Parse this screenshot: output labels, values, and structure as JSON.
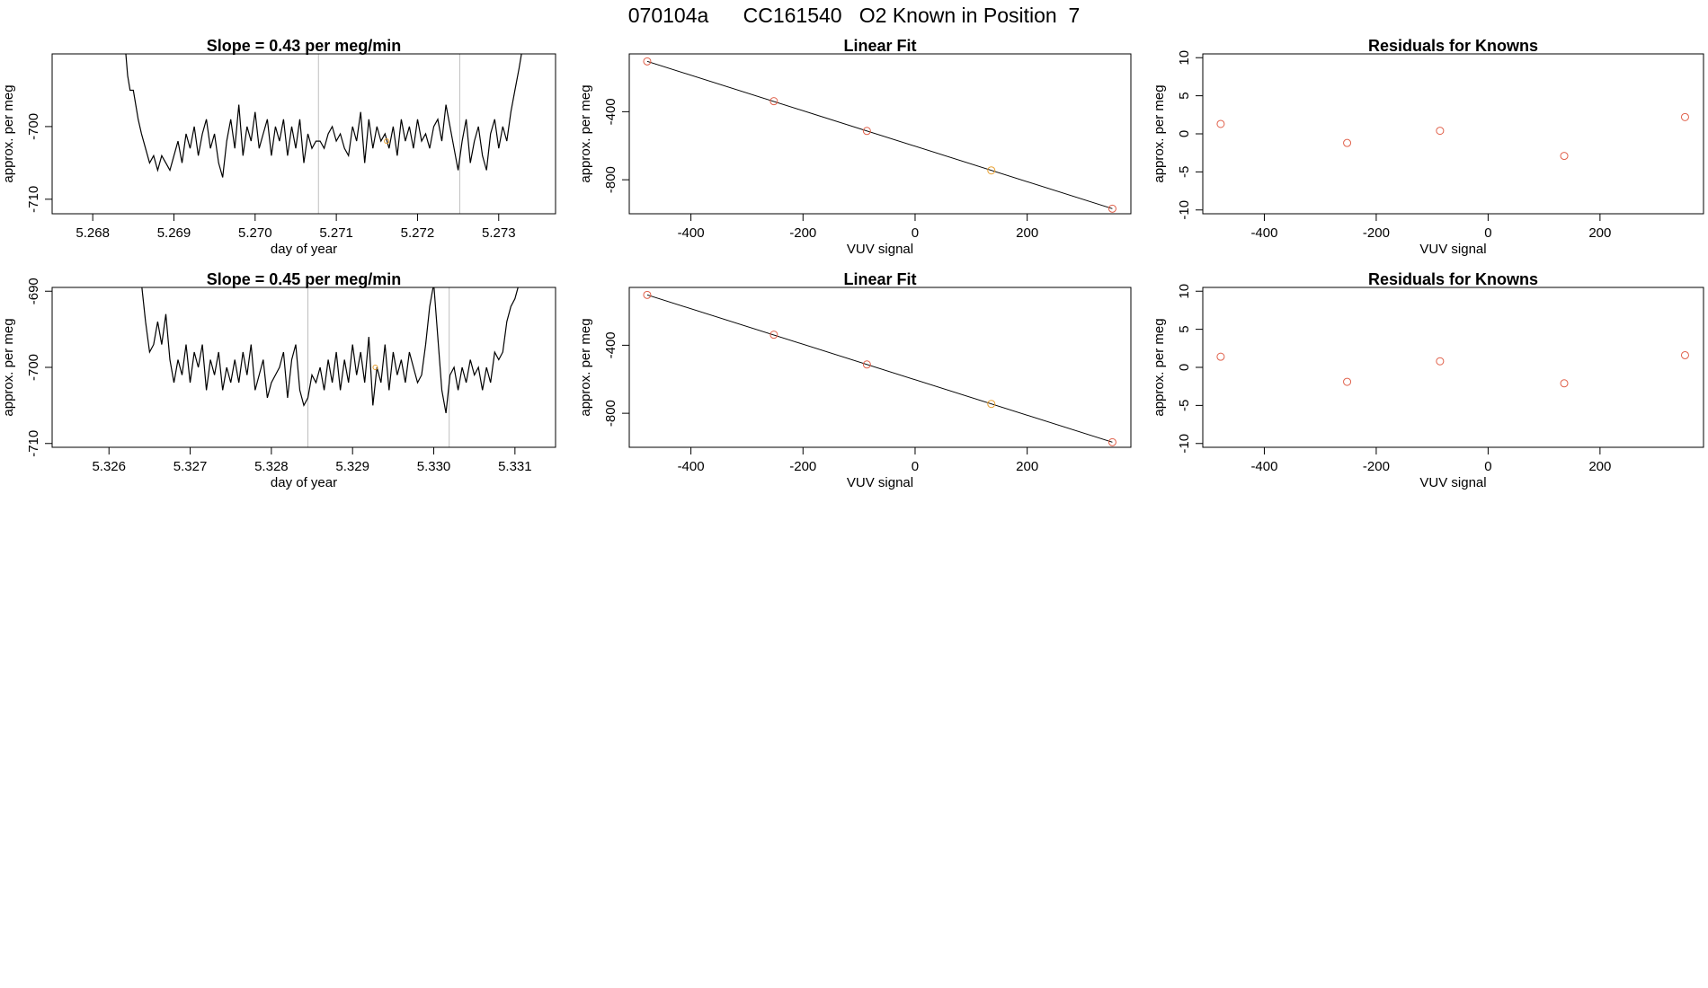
{
  "page_title": "070104a      CC161540   O2 Known in Position  7",
  "colors": {
    "known_point": "#e0604a",
    "highlight_point": "#e8a030",
    "trace": "#000000",
    "marker_line": "#bebebe"
  },
  "chart_data": [
    {
      "type": "line",
      "title": "Slope =  0.43  per meg/min",
      "xlabel": "day of year",
      "ylabel": "approx. per meg",
      "xlim": [
        5.2675,
        5.2737
      ],
      "ylim": [
        -712,
        -690
      ],
      "xticks": [
        "5.268",
        "5.269",
        "5.270",
        "5.271",
        "5.272",
        "5.273"
      ],
      "yticks": [
        "-710",
        "-700"
      ],
      "vlines": [
        5.27078,
        5.27252
      ],
      "highlight": {
        "x": 5.27162,
        "y": -702
      },
      "x": [
        5.2684,
        5.26843,
        5.26846,
        5.2685,
        5.26853,
        5.26856,
        5.2686,
        5.26865,
        5.2687,
        5.26875,
        5.2688,
        5.26885,
        5.2689,
        5.26895,
        5.269,
        5.26905,
        5.2691,
        5.26915,
        5.2692,
        5.26925,
        5.2693,
        5.26935,
        5.2694,
        5.26945,
        5.2695,
        5.26955,
        5.2696,
        5.26965,
        5.2697,
        5.26975,
        5.2698,
        5.26985,
        5.2699,
        5.26995,
        5.27,
        5.27005,
        5.2701,
        5.27015,
        5.2702,
        5.27025,
        5.2703,
        5.27035,
        5.2704,
        5.27045,
        5.2705,
        5.27055,
        5.2706,
        5.27065,
        5.2707,
        5.27075,
        5.2708,
        5.27085,
        5.2709,
        5.27095,
        5.271,
        5.27105,
        5.2711,
        5.27115,
        5.2712,
        5.27125,
        5.2713,
        5.27135,
        5.2714,
        5.27145,
        5.2715,
        5.27155,
        5.2716,
        5.27165,
        5.2717,
        5.27175,
        5.2718,
        5.27185,
        5.2719,
        5.27195,
        5.272,
        5.27205,
        5.2721,
        5.27215,
        5.2722,
        5.27225,
        5.2723,
        5.27235,
        5.2724,
        5.27245,
        5.2725,
        5.27255,
        5.2726,
        5.27265,
        5.2727,
        5.27275,
        5.2728,
        5.27285,
        5.2729,
        5.27295,
        5.273,
        5.27305,
        5.2731,
        5.27315,
        5.2732,
        5.27325,
        5.27328,
        5.2733,
        5.27335
      ],
      "y": [
        -689,
        -693,
        -695,
        -695,
        -697,
        -699,
        -701,
        -703,
        -705,
        -704,
        -706,
        -704,
        -705,
        -706,
        -704,
        -702,
        -705,
        -701,
        -703,
        -700,
        -704,
        -701,
        -699,
        -703,
        -701,
        -705,
        -707,
        -702,
        -699,
        -703,
        -697,
        -704,
        -700,
        -702,
        -698,
        -703,
        -701,
        -699,
        -704,
        -700,
        -702,
        -699,
        -704,
        -700,
        -703,
        -699,
        -705,
        -701,
        -703,
        -702,
        -702,
        -703,
        -701,
        -700,
        -702,
        -701,
        -703,
        -704,
        -700,
        -702,
        -698,
        -705,
        -699,
        -703,
        -700,
        -702,
        -701,
        -703,
        -700,
        -704,
        -699,
        -702,
        -700,
        -703,
        -699,
        -702,
        -701,
        -703,
        -700,
        -699,
        -702,
        -697,
        -700,
        -703,
        -706,
        -702,
        -699,
        -705,
        -702,
        -700,
        -704,
        -706,
        -701,
        -699,
        -703,
        -700,
        -702,
        -698,
        -695,
        -692,
        -690,
        -689,
        -689
      ]
    },
    {
      "type": "scatter",
      "title": "Linear Fit",
      "xlabel": "VUV signal",
      "ylabel": "approx. per meg",
      "xlim": [
        -510,
        385
      ],
      "ylim": [
        -1000,
        -60
      ],
      "xticks": [
        "-400",
        "-200",
        "0",
        "200"
      ],
      "yticks": [
        "-800",
        "-400"
      ],
      "points": [
        {
          "x": -478,
          "y": -104
        },
        {
          "x": -252,
          "y": -338
        },
        {
          "x": -86,
          "y": -513
        },
        {
          "x": 136,
          "y": -745
        },
        {
          "x": 352,
          "y": -970
        }
      ],
      "fit_line": {
        "x": [
          -478,
          352
        ],
        "y": [
          -104,
          -970
        ]
      }
    },
    {
      "type": "scatter",
      "title": "Residuals for Knowns",
      "xlabel": "VUV signal",
      "ylabel": "approx. per meg",
      "xlim": [
        -510,
        385
      ],
      "ylim": [
        -10.5,
        10.5
      ],
      "xticks": [
        "-400",
        "-200",
        "0",
        "200"
      ],
      "yticks": [
        "-10",
        "-5",
        "0",
        "5",
        "10"
      ],
      "points": [
        {
          "x": -478,
          "y": 1.3
        },
        {
          "x": -252,
          "y": -1.2
        },
        {
          "x": -86,
          "y": 0.4
        },
        {
          "x": 136,
          "y": -2.9
        },
        {
          "x": 352,
          "y": 2.2
        }
      ]
    },
    {
      "type": "line",
      "title": "Slope =  0.45  per meg/min",
      "xlabel": "day of year",
      "ylabel": "approx. per meg",
      "xlim": [
        5.3253,
        5.3315
      ],
      "ylim": [
        -710.5,
        -689.5
      ],
      "xticks": [
        "5.326",
        "5.327",
        "5.328",
        "5.329",
        "5.330",
        "5.331"
      ],
      "yticks": [
        "-710",
        "-700",
        "-690"
      ],
      "vlines": [
        5.32845,
        5.33019
      ],
      "highlight": {
        "x": 5.32928,
        "y": -700
      },
      "x": [
        5.3264,
        5.32645,
        5.3265,
        5.32655,
        5.3266,
        5.32665,
        5.3267,
        5.32675,
        5.3268,
        5.32685,
        5.3269,
        5.32695,
        5.327,
        5.32705,
        5.3271,
        5.32715,
        5.3272,
        5.32725,
        5.3273,
        5.32735,
        5.3274,
        5.32745,
        5.3275,
        5.32755,
        5.3276,
        5.32765,
        5.3277,
        5.32775,
        5.3278,
        5.32785,
        5.3279,
        5.32795,
        5.328,
        5.32805,
        5.3281,
        5.32815,
        5.3282,
        5.32825,
        5.3283,
        5.32835,
        5.3284,
        5.32845,
        5.3285,
        5.32855,
        5.3286,
        5.32865,
        5.3287,
        5.32875,
        5.3288,
        5.32885,
        5.3289,
        5.32895,
        5.329,
        5.32905,
        5.3291,
        5.32915,
        5.3292,
        5.32925,
        5.3293,
        5.32935,
        5.3294,
        5.32945,
        5.3295,
        5.32955,
        5.3296,
        5.32965,
        5.3297,
        5.32975,
        5.3298,
        5.32985,
        5.3299,
        5.32995,
        5.33,
        5.33005,
        5.3301,
        5.33015,
        5.3302,
        5.33025,
        5.3303,
        5.33035,
        5.3304,
        5.33045,
        5.3305,
        5.33055,
        5.3306,
        5.33065,
        5.3307,
        5.33075,
        5.3308,
        5.33085,
        5.3309,
        5.33095,
        5.331,
        5.33105
      ],
      "y": [
        -689,
        -694,
        -698,
        -697,
        -694,
        -697,
        -693,
        -699,
        -702,
        -699,
        -701,
        -697,
        -702,
        -698,
        -700,
        -697,
        -703,
        -699,
        -701,
        -698,
        -703,
        -700,
        -702,
        -699,
        -702,
        -698,
        -701,
        -697,
        -703,
        -701,
        -699,
        -704,
        -702,
        -701,
        -700,
        -698,
        -704,
        -699,
        -697,
        -703,
        -705,
        -704,
        -701,
        -702,
        -700,
        -703,
        -699,
        -702,
        -698,
        -703,
        -699,
        -702,
        -697,
        -701,
        -698,
        -702,
        -696,
        -705,
        -700,
        -702,
        -697,
        -703,
        -698,
        -701,
        -699,
        -702,
        -698,
        -700,
        -702,
        -701,
        -697,
        -692,
        -689,
        -696,
        -703,
        -706,
        -701,
        -700,
        -703,
        -700,
        -702,
        -699,
        -701,
        -700,
        -703,
        -700,
        -702,
        -698,
        -699,
        -698,
        -694,
        -692,
        -691,
        -689
      ]
    },
    {
      "type": "scatter",
      "title": "Linear Fit",
      "xlabel": "VUV signal",
      "ylabel": "approx. per meg",
      "xlim": [
        -510,
        385
      ],
      "ylim": [
        -1000,
        -60
      ],
      "xticks": [
        "-400",
        "-200",
        "0",
        "200"
      ],
      "yticks": [
        "-800",
        "-400"
      ],
      "points": [
        {
          "x": -478,
          "y": -104
        },
        {
          "x": -252,
          "y": -338
        },
        {
          "x": -86,
          "y": -513
        },
        {
          "x": 136,
          "y": -745
        },
        {
          "x": 352,
          "y": -970
        }
      ],
      "fit_line": {
        "x": [
          -478,
          352
        ],
        "y": [
          -104,
          -970
        ]
      }
    },
    {
      "type": "scatter",
      "title": "Residuals for Knowns",
      "xlabel": "VUV signal",
      "ylabel": "approx. per meg",
      "xlim": [
        -510,
        385
      ],
      "ylim": [
        -10.5,
        10.5
      ],
      "xticks": [
        "-400",
        "-200",
        "0",
        "200"
      ],
      "yticks": [
        "-10",
        "-5",
        "0",
        "5",
        "10"
      ],
      "points": [
        {
          "x": -478,
          "y": 1.4
        },
        {
          "x": -252,
          "y": -1.9
        },
        {
          "x": -86,
          "y": 0.8
        },
        {
          "x": 136,
          "y": -2.1
        },
        {
          "x": 352,
          "y": 1.6
        }
      ]
    }
  ]
}
